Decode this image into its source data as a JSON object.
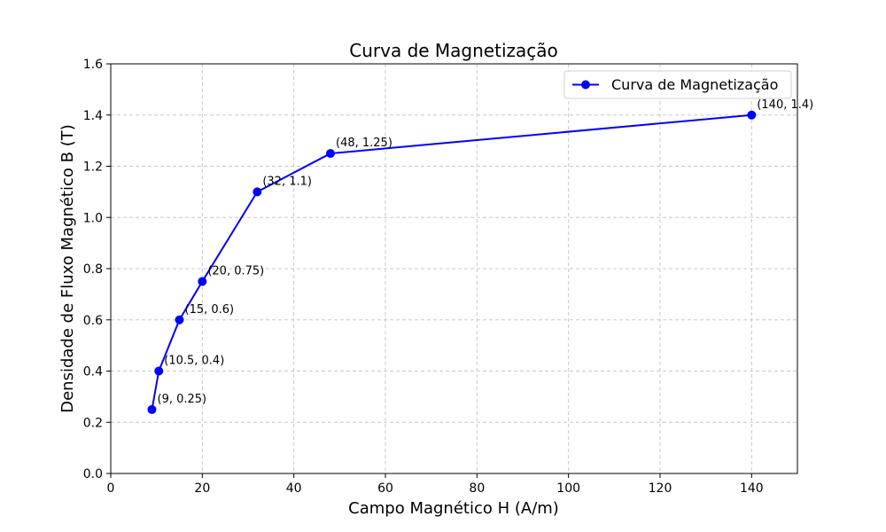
{
  "chart_data": {
    "type": "line",
    "title": "Curva de Magnetização",
    "xlabel": "Campo Magnético H (A/m)",
    "ylabel": "Densidade de Fluxo Magnético B (T)",
    "xlim": [
      0,
      150
    ],
    "ylim": [
      0,
      1.6
    ],
    "xticks": [
      0,
      20,
      40,
      60,
      80,
      100,
      120,
      140
    ],
    "yticks": [
      0.0,
      0.2,
      0.4,
      0.6,
      0.8,
      1.0,
      1.2,
      1.4,
      1.6
    ],
    "x_tick_labels": [
      "0",
      "20",
      "40",
      "60",
      "80",
      "100",
      "120",
      "140"
    ],
    "y_tick_labels": [
      "0.0",
      "0.2",
      "0.4",
      "0.6",
      "0.8",
      "1.0",
      "1.2",
      "1.4",
      "1.6"
    ],
    "grid": true,
    "legend_position": "top-right",
    "series": [
      {
        "name": "Curva de Magnetização",
        "color": "#0000ff",
        "x": [
          9,
          10.5,
          15,
          20,
          32,
          48,
          140
        ],
        "y": [
          0.25,
          0.4,
          0.6,
          0.75,
          1.1,
          1.25,
          1.4
        ],
        "labels": [
          "(9, 0.25)",
          "(10.5, 0.4)",
          "(15, 0.6)",
          "(20, 0.75)",
          "(32, 1.1)",
          "(48, 1.25)",
          "(140, 1.4)"
        ]
      }
    ]
  }
}
